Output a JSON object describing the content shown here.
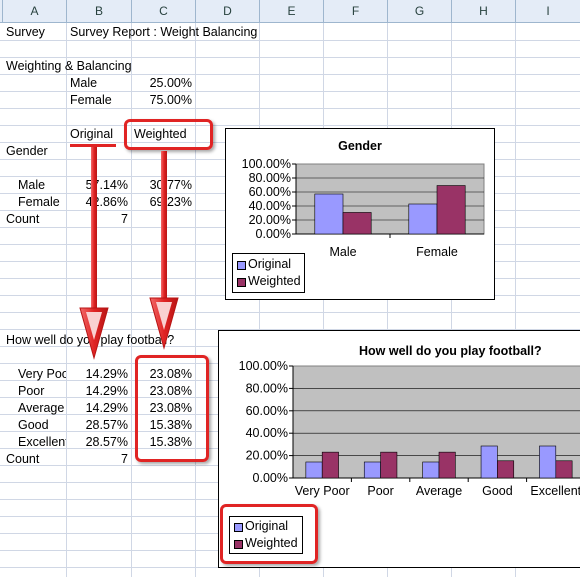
{
  "sheet": {
    "columns": [
      "A",
      "B",
      "C",
      "D",
      "E",
      "F",
      "G",
      "H",
      "I"
    ],
    "survey_label": "Survey",
    "report_title": "Survey Report : Weight Balancing",
    "weighting_title": "Weighting & Balancing",
    "weights": [
      {
        "label": "Male",
        "value": "25.00%"
      },
      {
        "label": "Female",
        "value": "75.00%"
      }
    ],
    "col_original": "Original",
    "col_weighted": "Weighted",
    "gender_label": "Gender",
    "gender_rows": [
      {
        "label": "Male",
        "original": "57.14%",
        "weighted": "30.77%"
      },
      {
        "label": "Female",
        "original": "42.86%",
        "weighted": "69.23%"
      }
    ],
    "count_label": "Count",
    "count_value": "7",
    "question": "How well do you play football?",
    "football_rows": [
      {
        "label": "Very Poor",
        "original": "14.29%",
        "weighted": "23.08%"
      },
      {
        "label": "Poor",
        "original": "14.29%",
        "weighted": "23.08%"
      },
      {
        "label": "Average",
        "original": "14.29%",
        "weighted": "23.08%"
      },
      {
        "label": "Good",
        "original": "28.57%",
        "weighted": "15.38%"
      },
      {
        "label": "Excellent",
        "original": "28.57%",
        "weighted": "15.38%"
      }
    ],
    "count2_label": "Count",
    "count2_value": "7"
  },
  "colors": {
    "original": "#9999ff",
    "weighted": "#993366",
    "plot_bg": "#c0c0c0",
    "annotation": "#e02424"
  },
  "chart_data": [
    {
      "type": "bar",
      "title": "Gender",
      "categories": [
        "Male",
        "Female"
      ],
      "series": [
        {
          "name": "Original",
          "values": [
            57.14,
            42.86
          ]
        },
        {
          "name": "Weighted",
          "values": [
            30.77,
            69.23
          ]
        }
      ],
      "yticks": [
        "100.00%",
        "80.00%",
        "60.00%",
        "40.00%",
        "20.00%",
        "0.00%"
      ],
      "ylim": [
        0,
        100
      ],
      "legend": "bottom-left"
    },
    {
      "type": "bar",
      "title": "How well do you play football?",
      "categories": [
        "Very Poor",
        "Poor",
        "Average",
        "Good",
        "Excellent"
      ],
      "series": [
        {
          "name": "Original",
          "values": [
            14.29,
            14.29,
            14.29,
            28.57,
            28.57
          ]
        },
        {
          "name": "Weighted",
          "values": [
            23.08,
            23.08,
            23.08,
            15.38,
            15.38
          ]
        }
      ],
      "yticks": [
        "100.00%",
        "80.00%",
        "60.00%",
        "40.00%",
        "20.00%",
        "0.00%"
      ],
      "ylim": [
        0,
        100
      ],
      "legend": "bottom-left"
    }
  ]
}
